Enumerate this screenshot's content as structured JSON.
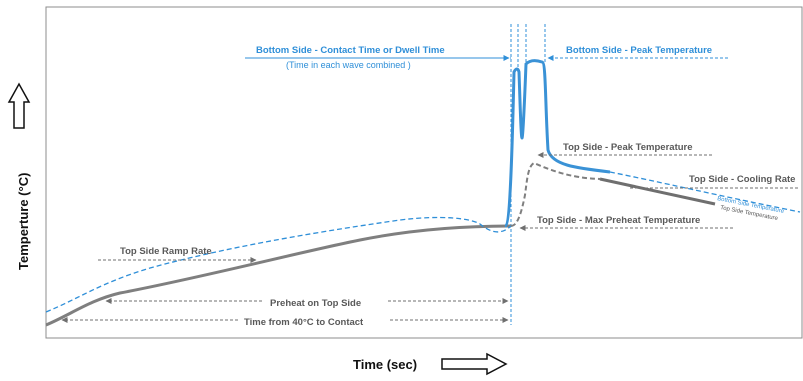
{
  "axes": {
    "x_title": "Time (sec)",
    "y_title": "Temperture (°C)"
  },
  "labels": {
    "bottom_contact": "Bottom Side - Contact Time or Dwell Time",
    "bottom_contact_sub": "(Time in each wave combined )",
    "bottom_peak": "Bottom Side - Peak Temperature",
    "top_peak": "Top Side - Peak Temperature",
    "top_cooling": "Top Side - Cooling Rate",
    "bottom_side_temp": "Bottom  Side Temperature",
    "top_side_temp": "Top Side Temperature",
    "top_max_preheat": "Top Side  - Max Preheat Temperature",
    "top_ramp": "Top Side Ramp Rate",
    "preheat_top": "Preheat on Top Side",
    "time_40_contact": "Time from 40°C  to Contact"
  },
  "colors": {
    "blue": "#2f8fd8",
    "gray": "#7f7f7f",
    "dark_gray": "#595959"
  }
}
